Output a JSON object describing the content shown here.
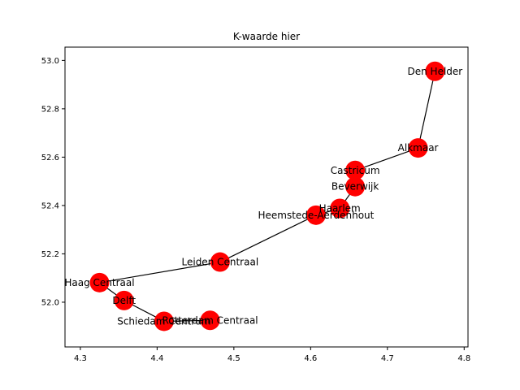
{
  "chart_data": {
    "type": "scatter",
    "title": "K-waarde hier",
    "xlabel": "",
    "ylabel": "",
    "xlim": [
      4.28,
      4.805
    ],
    "ylim": [
      51.815,
      53.055
    ],
    "xticks": [
      "4.3",
      "4.4",
      "4.5",
      "4.6",
      "4.7",
      "4.8"
    ],
    "yticks": [
      "52.0",
      "52.2",
      "52.4",
      "52.6",
      "52.8",
      "53.0"
    ],
    "grid": false,
    "marker_color": "#ff0000",
    "line_color": "#000000",
    "stations": [
      {
        "name": "Den Helder",
        "x": 4.762,
        "y": 52.955
      },
      {
        "name": "Alkmaar",
        "x": 4.74,
        "y": 52.638
      },
      {
        "name": "Castricum",
        "x": 4.658,
        "y": 52.545
      },
      {
        "name": "Beverwijk",
        "x": 4.658,
        "y": 52.478
      },
      {
        "name": "Haarlem",
        "x": 4.638,
        "y": 52.388
      },
      {
        "name": "Heemstede-Aerdenhout",
        "x": 4.607,
        "y": 52.36
      },
      {
        "name": "Leiden Centraal",
        "x": 4.482,
        "y": 52.166
      },
      {
        "name": "Haag Centraal",
        "x": 4.325,
        "y": 52.081
      },
      {
        "name": "Delft",
        "x": 4.357,
        "y": 52.007
      },
      {
        "name": "Schiedam Centrum",
        "x": 4.409,
        "y": 51.921
      },
      {
        "name": "Rotterdam Centraal",
        "x": 4.469,
        "y": 51.925
      }
    ],
    "edges": [
      [
        "Den Helder",
        "Alkmaar"
      ],
      [
        "Alkmaar",
        "Castricum"
      ],
      [
        "Castricum",
        "Beverwijk"
      ],
      [
        "Beverwijk",
        "Haarlem"
      ],
      [
        "Haarlem",
        "Heemstede-Aerdenhout"
      ],
      [
        "Heemstede-Aerdenhout",
        "Leiden Centraal"
      ],
      [
        "Leiden Centraal",
        "Haag Centraal"
      ],
      [
        "Haag Centraal",
        "Delft"
      ],
      [
        "Delft",
        "Schiedam Centrum"
      ],
      [
        "Schiedam Centrum",
        "Rotterdam Centraal"
      ]
    ]
  }
}
